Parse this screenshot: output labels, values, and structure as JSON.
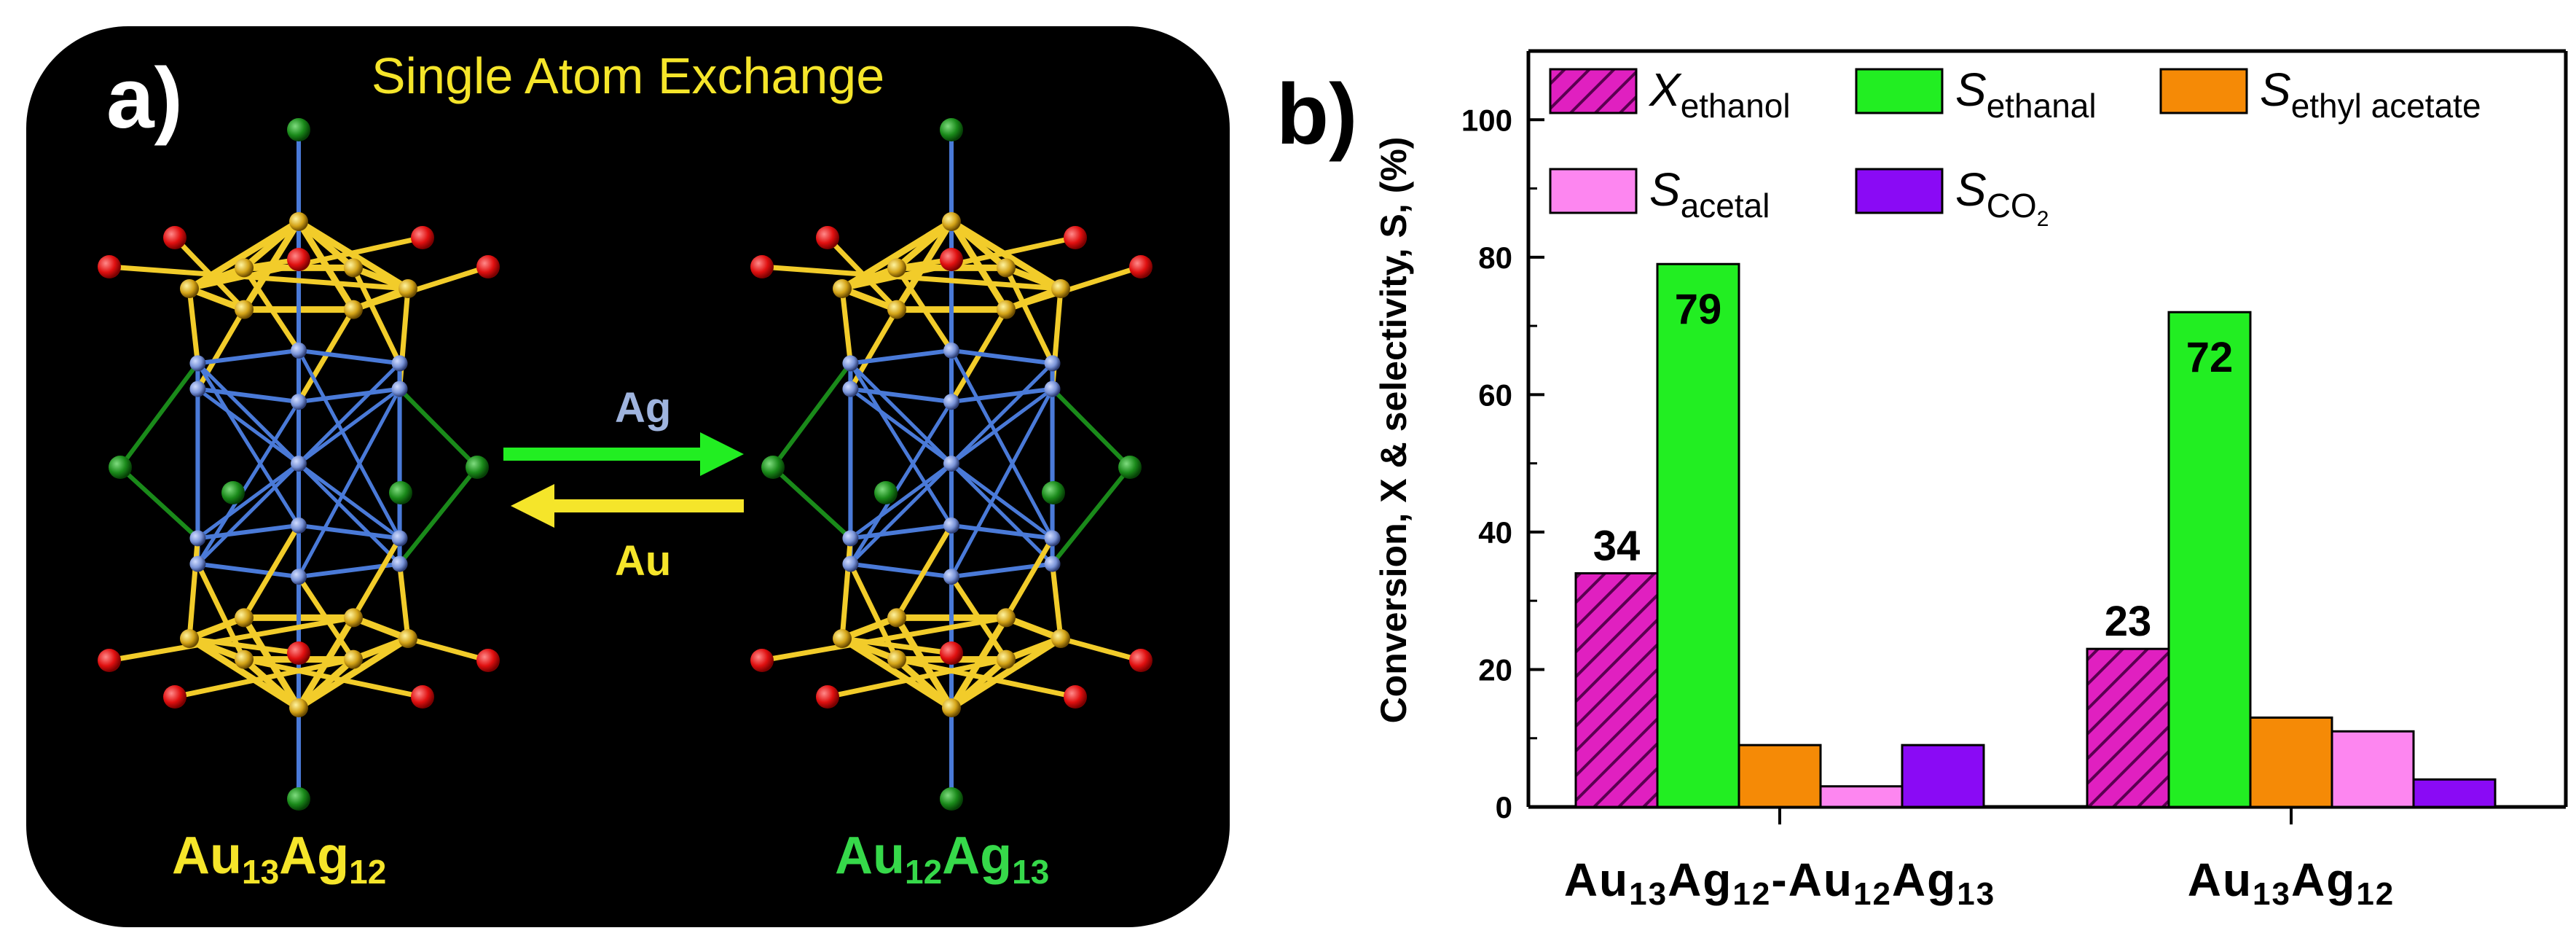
{
  "panel_a": {
    "label": "a)",
    "title": "Single Atom Exchange",
    "arrow_top_label": "Ag",
    "arrow_bottom_label": "Au",
    "left_cluster": {
      "p1": "Au",
      "s1": "13",
      "p2": "Ag",
      "s2": "12"
    },
    "right_cluster": {
      "p1": "Au",
      "s1": "12",
      "p2": "Ag",
      "s2": "13"
    }
  },
  "panel_b": {
    "label": "b)"
  },
  "chart_data": {
    "type": "bar",
    "title": "",
    "xlabel": "",
    "ylabel": "Conversion, X & selectivity, S, (%)",
    "ylim": [
      0,
      110
    ],
    "yticks": [
      0,
      20,
      40,
      60,
      80,
      100
    ],
    "categories": [
      "Au13Ag12-Au12Ag13",
      "Au13Ag12"
    ],
    "categories_parts": [
      [
        {
          "t": "Au",
          "sub": false
        },
        {
          "t": "13",
          "sub": true
        },
        {
          "t": "Ag",
          "sub": false
        },
        {
          "t": "12",
          "sub": true
        },
        {
          "t": "-Au",
          "sub": false
        },
        {
          "t": "12",
          "sub": true
        },
        {
          "t": "Ag",
          "sub": false
        },
        {
          "t": "13",
          "sub": true
        }
      ],
      [
        {
          "t": "Au",
          "sub": false
        },
        {
          "t": "13",
          "sub": true
        },
        {
          "t": "Ag",
          "sub": false
        },
        {
          "t": "12",
          "sub": true
        }
      ]
    ],
    "series": [
      {
        "name": "Xethanol",
        "sym": "X",
        "sub": "ethanol",
        "color": "#e020c0",
        "hatch": true,
        "values": [
          34,
          23
        ],
        "labels": [
          "34",
          "23"
        ]
      },
      {
        "name": "Sethanal",
        "sym": "S",
        "sub": "ethanal",
        "color": "#22ee22",
        "hatch": false,
        "values": [
          79,
          72
        ],
        "labels": [
          "79",
          "72"
        ]
      },
      {
        "name": "Sethyl acetate",
        "sym": "S",
        "sub": "ethyl acetate",
        "color": "#f58a06",
        "hatch": false,
        "values": [
          9,
          13
        ],
        "labels": [
          "",
          ""
        ]
      },
      {
        "name": "Sacetal",
        "sym": "S",
        "sub": "acetal",
        "color": "#fd86f0",
        "hatch": false,
        "values": [
          3,
          11
        ],
        "labels": [
          "",
          ""
        ]
      },
      {
        "name": "SCO2",
        "sym": "S",
        "sub": "CO",
        "sub2": "2",
        "color": "#8a0af5",
        "hatch": false,
        "values": [
          9,
          4
        ],
        "labels": [
          "",
          ""
        ]
      }
    ],
    "legend_position": "top",
    "grid": false,
    "colors": {
      "axis": "#000000"
    }
  }
}
